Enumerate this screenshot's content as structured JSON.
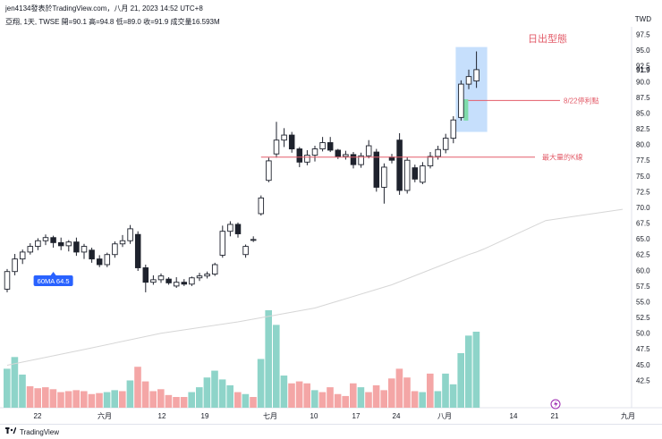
{
  "header": {
    "top_line": "jen4134發表於TradingView.com，八月 21, 2023 14:52 UTC+8",
    "ohlc_line": "亞翔, 1天, TWSE  開=90.1  高=94.8  低=89.0  收=91.9  成交量16.593M"
  },
  "currency": "TWD",
  "footer": {
    "brand": "TradingView"
  },
  "chart_data": {
    "type": "candlestick",
    "ylim": [
      40,
      98
    ],
    "y_ticks": [
      42.5,
      45.0,
      47.5,
      50.0,
      52.5,
      55.0,
      57.5,
      60.0,
      62.5,
      65.0,
      67.5,
      70.0,
      72.5,
      75.0,
      77.5,
      80.0,
      82.5,
      85.0,
      87.5,
      90.0,
      92.5,
      95.0,
      97.5
    ],
    "last_price": "91.9",
    "x_labels": [
      "22",
      "六月",
      "12",
      "19",
      "七月",
      "10",
      "17",
      "24",
      "八月",
      "14",
      "21",
      "九月"
    ],
    "candles": [
      [
        57.0,
        60.2,
        56.5,
        59.8
      ],
      [
        59.8,
        62.6,
        59.2,
        61.8
      ],
      [
        61.8,
        63.3,
        61.0,
        62.9
      ],
      [
        62.9,
        64.3,
        62.5,
        63.8
      ],
      [
        63.8,
        65.1,
        63.2,
        64.7
      ],
      [
        64.7,
        65.7,
        64.0,
        65.2
      ],
      [
        65.2,
        65.5,
        63.6,
        64.4
      ],
      [
        64.4,
        65.2,
        63.2,
        63.9
      ],
      [
        63.9,
        64.8,
        63.0,
        64.5
      ],
      [
        64.5,
        65.2,
        62.3,
        62.9
      ],
      [
        62.9,
        64.2,
        61.8,
        63.8
      ],
      [
        63.2,
        63.6,
        61.2,
        61.8
      ],
      [
        61.8,
        62.4,
        60.5,
        60.9
      ],
      [
        60.9,
        62.8,
        60.5,
        62.5
      ],
      [
        62.5,
        64.6,
        62.0,
        64.2
      ],
      [
        64.2,
        65.6,
        63.7,
        64.7
      ],
      [
        64.7,
        67.2,
        64.2,
        66.6
      ],
      [
        65.7,
        66.2,
        59.9,
        60.4
      ],
      [
        60.4,
        60.9,
        56.5,
        58.1
      ],
      [
        58.1,
        59.2,
        57.7,
        58.5
      ],
      [
        58.5,
        59.5,
        58.0,
        59.1
      ],
      [
        58.6,
        58.9,
        57.7,
        58.0
      ],
      [
        57.5,
        58.9,
        57.2,
        58.1
      ],
      [
        58.1,
        58.6,
        57.5,
        57.8
      ],
      [
        57.8,
        59.0,
        57.5,
        58.8
      ],
      [
        58.8,
        59.6,
        58.3,
        59.1
      ],
      [
        59.1,
        59.8,
        58.7,
        59.4
      ],
      [
        59.4,
        61.2,
        59.1,
        60.9
      ],
      [
        62.4,
        67.1,
        62.0,
        66.2
      ],
      [
        66.2,
        67.8,
        65.4,
        67.3
      ],
      [
        67.3,
        67.6,
        65.2,
        65.8
      ],
      [
        62.5,
        64.1,
        62.0,
        63.8
      ],
      [
        64.8,
        65.4,
        64.5,
        64.9
      ],
      [
        69.0,
        71.9,
        68.7,
        71.5
      ],
      [
        74.3,
        77.9,
        74.0,
        77.4
      ],
      [
        78.5,
        83.6,
        77.9,
        80.7
      ],
      [
        80.7,
        82.6,
        79.6,
        81.5
      ],
      [
        81.5,
        82.0,
        78.7,
        79.3
      ],
      [
        79.3,
        79.6,
        76.4,
        77.2
      ],
      [
        77.2,
        79.1,
        76.7,
        78.3
      ],
      [
        78.3,
        79.8,
        77.3,
        79.3
      ],
      [
        79.3,
        81.2,
        78.9,
        80.3
      ],
      [
        80.3,
        81.2,
        78.8,
        79.1
      ],
      [
        79.1,
        79.3,
        77.7,
        78.1
      ],
      [
        78.1,
        79.0,
        77.6,
        78.4
      ],
      [
        78.4,
        78.8,
        76.2,
        76.8
      ],
      [
        76.8,
        78.7,
        76.3,
        78.2
      ],
      [
        78.2,
        80.7,
        77.8,
        79.8
      ],
      [
        78.8,
        79.3,
        72.5,
        73.2
      ],
      [
        73.2,
        77.0,
        70.6,
        76.4
      ],
      [
        78.0,
        78.5,
        77.0,
        77.5
      ],
      [
        80.7,
        81.8,
        72.0,
        72.7
      ],
      [
        72.7,
        78.0,
        72.2,
        77.5
      ],
      [
        76.3,
        76.8,
        74.0,
        74.5
      ],
      [
        74.0,
        77.2,
        73.7,
        76.6
      ],
      [
        76.6,
        78.8,
        76.2,
        78.1
      ],
      [
        78.1,
        79.8,
        77.6,
        79.2
      ],
      [
        79.2,
        81.7,
        78.6,
        81.0
      ],
      [
        81.0,
        84.5,
        80.2,
        83.9
      ],
      [
        84.3,
        90.2,
        83.8,
        89.6
      ],
      [
        89.6,
        91.9,
        88.8,
        90.8
      ],
      [
        90.1,
        94.8,
        89.0,
        91.9
      ]
    ],
    "volume_up": [
      true,
      true,
      true,
      false,
      false,
      false,
      false,
      false,
      false,
      false,
      false,
      false,
      false,
      true,
      true,
      false,
      true,
      false,
      false,
      false,
      false,
      false,
      false,
      false,
      true,
      true,
      true,
      true,
      true,
      true,
      false,
      true,
      false,
      true,
      true,
      true,
      true,
      false,
      false,
      false,
      true,
      false,
      false,
      false,
      false,
      false,
      true,
      false,
      false,
      false,
      false,
      false,
      false,
      false,
      true,
      false,
      true,
      true,
      true,
      true,
      true,
      true
    ],
    "volume_height": [
      0.4,
      0.52,
      0.34,
      0.22,
      0.2,
      0.21,
      0.19,
      0.16,
      0.17,
      0.18,
      0.17,
      0.14,
      0.15,
      0.16,
      0.18,
      0.17,
      0.28,
      0.42,
      0.27,
      0.17,
      0.19,
      0.13,
      0.11,
      0.11,
      0.16,
      0.21,
      0.31,
      0.38,
      0.29,
      0.23,
      0.16,
      0.14,
      0.11,
      0.5,
      1.0,
      0.85,
      0.33,
      0.25,
      0.27,
      0.25,
      0.18,
      0.16,
      0.21,
      0.14,
      0.12,
      0.25,
      0.21,
      0.16,
      0.23,
      0.18,
      0.3,
      0.4,
      0.31,
      0.17,
      0.16,
      0.35,
      0.17,
      0.35,
      0.24,
      0.56,
      0.74,
      0.78
    ],
    "ma60": {
      "label": "60MA 64.5",
      "points": [
        [
          0,
          44.9
        ],
        [
          10,
          47.4
        ],
        [
          20,
          50.0
        ],
        [
          30,
          51.8
        ],
        [
          40,
          54.0
        ],
        [
          50,
          57.7
        ],
        [
          60,
          62.5
        ],
        [
          61,
          62.9
        ],
        [
          62,
          63.4
        ],
        [
          70,
          67.9
        ],
        [
          80,
          69.7
        ]
      ]
    },
    "annotations": {
      "pattern": "日出型態",
      "stop_line": "8/22停利點",
      "support_line": "最大量的K線",
      "support_level": 78.0,
      "stop_level": 87.0
    },
    "colors": {
      "up": "#ffffff",
      "down": "#1e222d",
      "volume_up": "#8ed4c9",
      "volume_down": "#f4a6a6",
      "annotation_red": "#e35d6a",
      "highlight_box": "#bcd9fb",
      "green_box": "#7fdcab",
      "ma_line": "#d6d6d6",
      "ma_label": "#2962ff"
    }
  }
}
